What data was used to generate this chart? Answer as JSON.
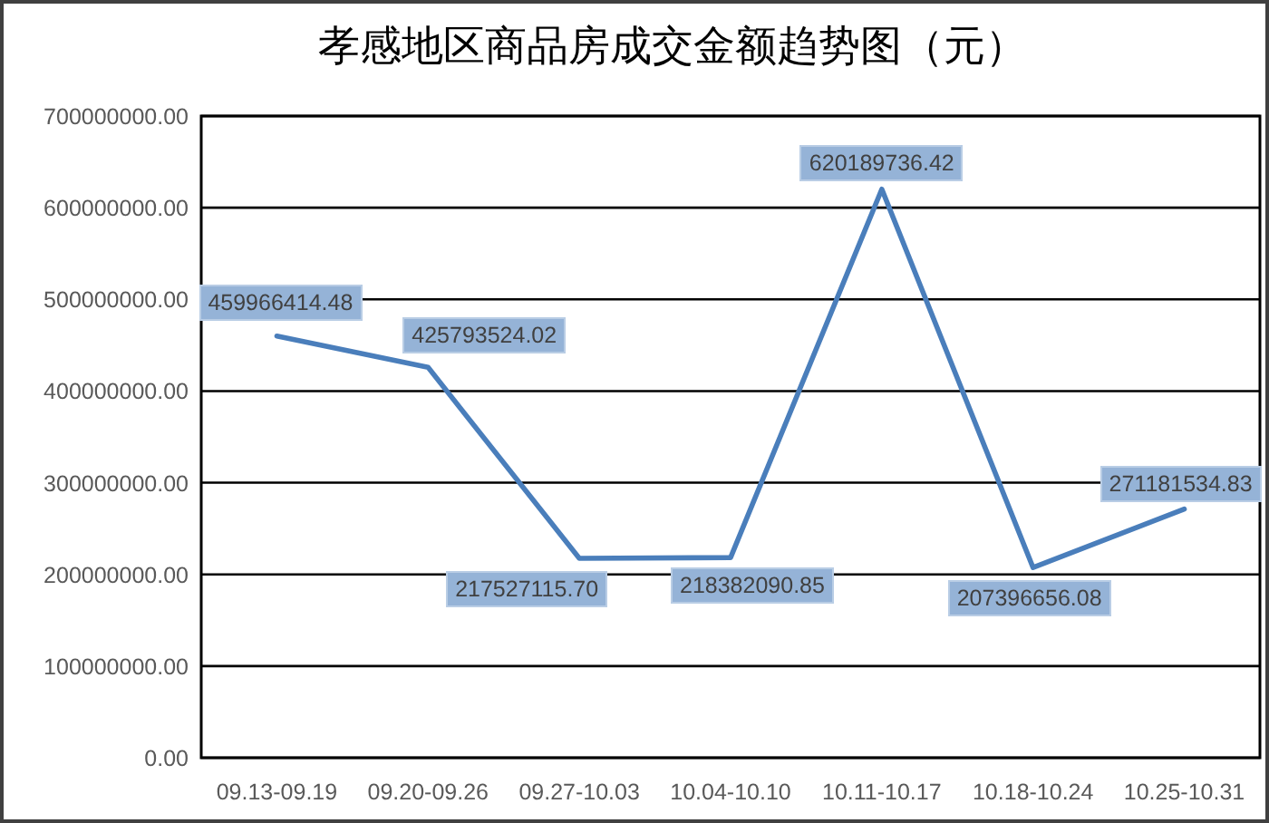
{
  "chart_data": {
    "type": "line",
    "title": "孝感地区商品房成交金额趋势图（元）",
    "categories": [
      "09.13-09.19",
      "09.20-09.26",
      "09.27-10.03",
      "10.04-10.10",
      "10.11-10.17",
      "10.18-10.24",
      "10.25-10.31"
    ],
    "series": [
      {
        "color": "#4a7ebb",
        "values": [
          459966414.48,
          425793524.02,
          217527115.7,
          218382090.85,
          620189736.42,
          207396656.08,
          271181534.83
        ],
        "value_labels": [
          "459966414.48",
          "425793524.02",
          "217527115.70",
          "218382090.85",
          "620189736.42",
          "207396656.08",
          "271181534.83"
        ]
      }
    ],
    "ylim": [
      0,
      700000000
    ],
    "yticks": [
      {
        "value": 0,
        "label": "0.00"
      },
      {
        "value": 100000000,
        "label": "100000000.00"
      },
      {
        "value": 200000000,
        "label": "200000000.00"
      },
      {
        "value": 300000000,
        "label": "300000000.00"
      },
      {
        "value": 400000000,
        "label": "400000000.00"
      },
      {
        "value": 500000000,
        "label": "500000000.00"
      },
      {
        "value": 600000000,
        "label": "600000000.00"
      },
      {
        "value": 700000000,
        "label": "700000000.00"
      }
    ],
    "grid": "y"
  }
}
